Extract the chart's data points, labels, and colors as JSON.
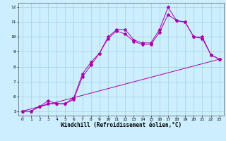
{
  "title": "",
  "xlabel": "Windchill (Refroidissement éolien,°C)",
  "ylabel": "",
  "background_color": "#cceeff",
  "line_color": "#aa00aa",
  "xlim": [
    -0.5,
    23.5
  ],
  "ylim": [
    4.7,
    12.3
  ],
  "yticks": [
    5,
    6,
    7,
    8,
    9,
    10,
    11,
    12
  ],
  "xticks": [
    0,
    1,
    2,
    3,
    4,
    5,
    6,
    7,
    8,
    9,
    10,
    11,
    12,
    13,
    14,
    15,
    16,
    17,
    18,
    19,
    20,
    21,
    22,
    23
  ],
  "series1_x": [
    0,
    1,
    2,
    3,
    4,
    5,
    6,
    7,
    8,
    9,
    10,
    11,
    12,
    13,
    14,
    15,
    16,
    17,
    18,
    19,
    20,
    21,
    22,
    23
  ],
  "series1_y": [
    5.0,
    5.0,
    5.3,
    5.7,
    5.5,
    5.5,
    5.9,
    7.5,
    8.3,
    8.9,
    10.0,
    10.5,
    10.5,
    9.8,
    9.6,
    9.6,
    10.5,
    12.0,
    11.1,
    11.0,
    10.0,
    10.0,
    8.8,
    8.5
  ],
  "series2_x": [
    0,
    1,
    2,
    3,
    4,
    5,
    6,
    7,
    8,
    9,
    10,
    11,
    12,
    13,
    14,
    15,
    16,
    17,
    18,
    19,
    20,
    21,
    22,
    23
  ],
  "series2_y": [
    5.0,
    5.0,
    5.3,
    5.5,
    5.5,
    5.5,
    5.8,
    7.3,
    8.1,
    8.9,
    9.9,
    10.4,
    10.2,
    9.7,
    9.5,
    9.5,
    10.3,
    11.5,
    11.1,
    11.0,
    10.0,
    9.9,
    8.8,
    8.5
  ],
  "series3_x": [
    0,
    23
  ],
  "series3_y": [
    5.0,
    8.5
  ],
  "grid_color": "#99cccc",
  "marker": "*",
  "markersize": 3,
  "linewidth": 0.7,
  "tick_fontsize": 4.5,
  "xlabel_fontsize": 5.5
}
